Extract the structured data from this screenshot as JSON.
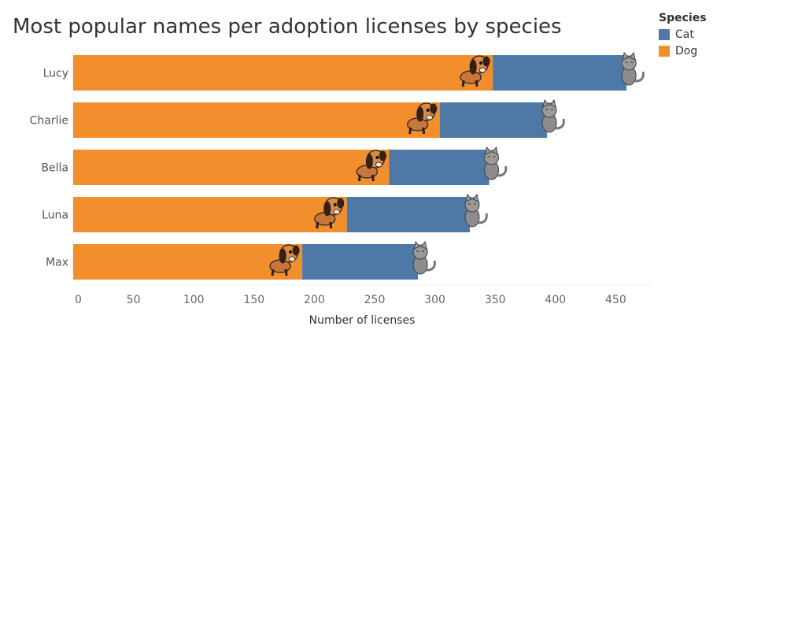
{
  "chart_data": {
    "type": "bar",
    "orientation": "horizontal",
    "stacked": true,
    "title": "Most popular names per adoption licenses by species",
    "xlabel": "Number of licenses",
    "ylabel": "",
    "categories": [
      "Lucy",
      "Charlie",
      "Bella",
      "Luna",
      "Max"
    ],
    "series": [
      {
        "name": "Dog",
        "color": "#f28e2b",
        "values": [
          348,
          304,
          262,
          227,
          190
        ]
      },
      {
        "name": "Cat",
        "color": "#4e79a7",
        "values": [
          111,
          89,
          83,
          102,
          96
        ]
      }
    ],
    "xlim": [
      0,
      480
    ],
    "xticks": [
      0,
      50,
      100,
      150,
      200,
      250,
      300,
      350,
      400,
      450
    ],
    "grid": false,
    "legend_title": "Species",
    "legend_placement": "top-right",
    "legend": [
      {
        "label": "Cat",
        "color": "#4e79a7"
      },
      {
        "label": "Dog",
        "color": "#f28e2b"
      }
    ],
    "icons": {
      "Dog": "dog-icon",
      "Cat": "cat-icon"
    }
  }
}
